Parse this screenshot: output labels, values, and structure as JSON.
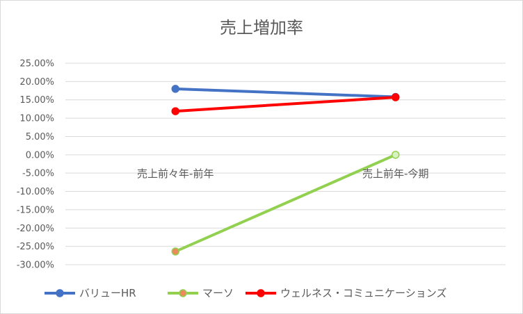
{
  "chart_data": {
    "type": "line",
    "title": "売上増加率",
    "categories": [
      "売上前々年-前年",
      "売上前年-今期"
    ],
    "y_tick_labels": [
      "25.00%",
      "20.00%",
      "15.00%",
      "10.00%",
      "5.00%",
      "0.00%",
      "-5.00%",
      "-10.00%",
      "-15.00%",
      "-20.00%",
      "-25.00%",
      "-30.00%"
    ],
    "ylim": [
      -30,
      25
    ],
    "y_unit": "%",
    "grid": true,
    "legend_position": "bottom",
    "series": [
      {
        "name": "バリューHR",
        "color": "#4472c4",
        "values": [
          18.0,
          15.8
        ]
      },
      {
        "name": "マーソ",
        "color": "#92d050",
        "values": [
          -26.4,
          0.0
        ]
      },
      {
        "name": "ウェルネス・コミュニケーションズ",
        "color": "#ff0000",
        "values": [
          11.9,
          15.7
        ]
      }
    ]
  }
}
